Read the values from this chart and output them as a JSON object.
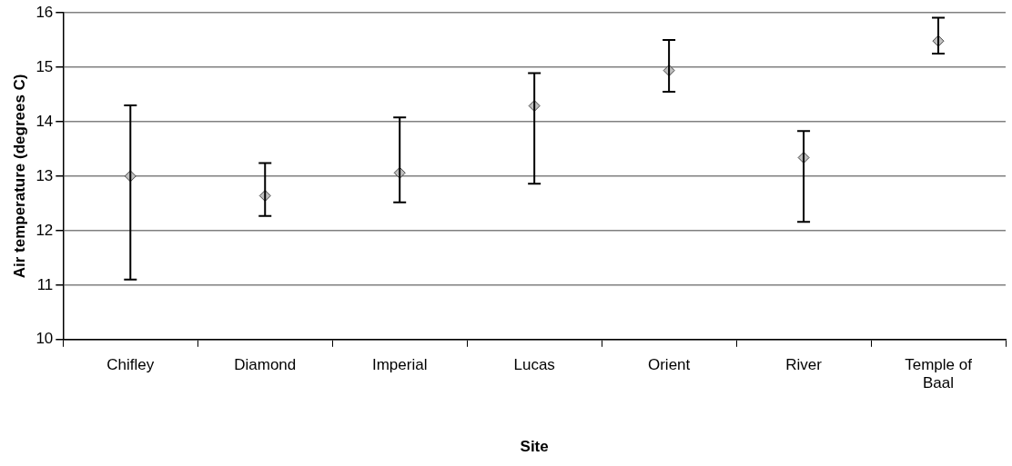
{
  "chart_data": {
    "type": "scatter",
    "xlabel": "Site",
    "ylabel": "Air temperature (degrees C)",
    "categories": [
      "Chifley",
      "Diamond",
      "Imperial",
      "Lucas",
      "Orient",
      "River",
      "Temple of Baal"
    ],
    "values": [
      13.0,
      12.64,
      13.06,
      14.29,
      14.94,
      13.34,
      15.48
    ],
    "errors": [
      [
        11.1,
        14.3
      ],
      [
        12.27,
        13.24
      ],
      [
        12.52,
        14.08
      ],
      [
        12.86,
        14.89
      ],
      [
        14.55,
        15.5
      ],
      [
        12.16,
        13.83
      ],
      [
        15.25,
        15.91
      ]
    ],
    "color": "#c0c0c0",
    "marker": "diamond",
    "ylim": [
      10,
      16
    ],
    "yticks": [
      10,
      11,
      12,
      13,
      14,
      15,
      16
    ],
    "grid": "y",
    "legend": false
  }
}
